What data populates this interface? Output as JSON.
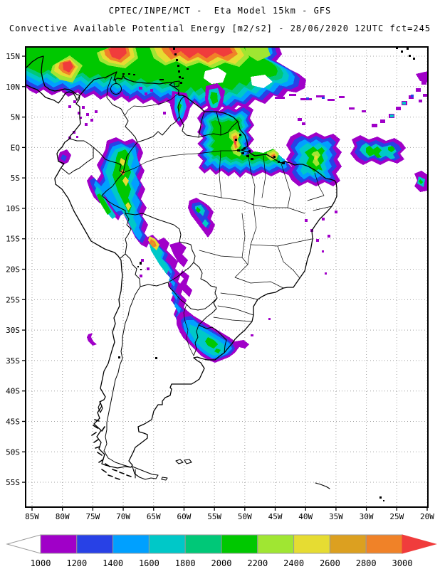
{
  "title": {
    "line1": "CPTEC/INPE/MCT -  Eta Model 15km - GFS",
    "line2": "Convective Available Potential Energy [m2/s2] - 28/06/2020 12UTC fct=245"
  },
  "axes": {
    "lat_labels": [
      "15N",
      "10N",
      "5N",
      "EQ",
      "5S",
      "10S",
      "15S",
      "20S",
      "25S",
      "30S",
      "35S",
      "40S",
      "45S",
      "50S",
      "55S"
    ],
    "lon_labels": [
      "85W",
      "80W",
      "75W",
      "70W",
      "65W",
      "60W",
      "55W",
      "50W",
      "45W",
      "40W",
      "35W",
      "30W",
      "25W",
      "20W"
    ]
  },
  "colorbar": {
    "tick_labels": [
      "1000",
      "1200",
      "1400",
      "1600",
      "1800",
      "2000",
      "2200",
      "2400",
      "2600",
      "2800",
      "3000"
    ],
    "cell_colors": [
      "#A000C8",
      "#2841E6",
      "#00A0FF",
      "#00C8C8",
      "#00C878",
      "#00C800",
      "#A0E632",
      "#E6DC32",
      "#DCA020",
      "#F08228"
    ],
    "below_min_color": "#FFFFFF",
    "above_max_color": "#F03C3C",
    "outline_color": "#999999"
  },
  "palette": {
    "purple": "#A000C8",
    "blue": "#2841E6",
    "lightblue": "#00A0FF",
    "cyan": "#00C8C8",
    "seagreen": "#00C878",
    "green": "#00C800",
    "yellowgreen": "#A0E632",
    "yellow": "#E6DC32",
    "mustard": "#DCA020",
    "orange": "#F08228",
    "red": "#F03C3C",
    "white": "#FFFFFF",
    "black": "#000000"
  },
  "map_style": {
    "grid_color": "#A0A0A0",
    "coast_color": "#000000",
    "frame_color": "#000000",
    "background": "#FFFFFF"
  },
  "chart_data": {
    "type": "heatmap",
    "title": "Convective Available Potential Energy [m2/s2]",
    "source": "CPTEC/INPE/MCT",
    "model": "Eta Model 15km - GFS",
    "valid": "28/06/2020 12UTC fct=245",
    "units": "m2/s2",
    "levels": [
      1000,
      1200,
      1400,
      1600,
      1800,
      2000,
      2200,
      2400,
      2600,
      2800,
      3000
    ],
    "lat_ticks": [
      "15N",
      "10N",
      "5N",
      "EQ",
      "5S",
      "10S",
      "15S",
      "20S",
      "25S",
      "30S",
      "35S",
      "40S",
      "45S",
      "50S",
      "55S"
    ],
    "lon_ticks": [
      "85W",
      "80W",
      "75W",
      "70W",
      "65W",
      "60W",
      "55W",
      "50W",
      "45W",
      "40W",
      "35W",
      "30W",
      "25W",
      "20W"
    ],
    "legend_position": "bottom",
    "grid": "dotted"
  }
}
